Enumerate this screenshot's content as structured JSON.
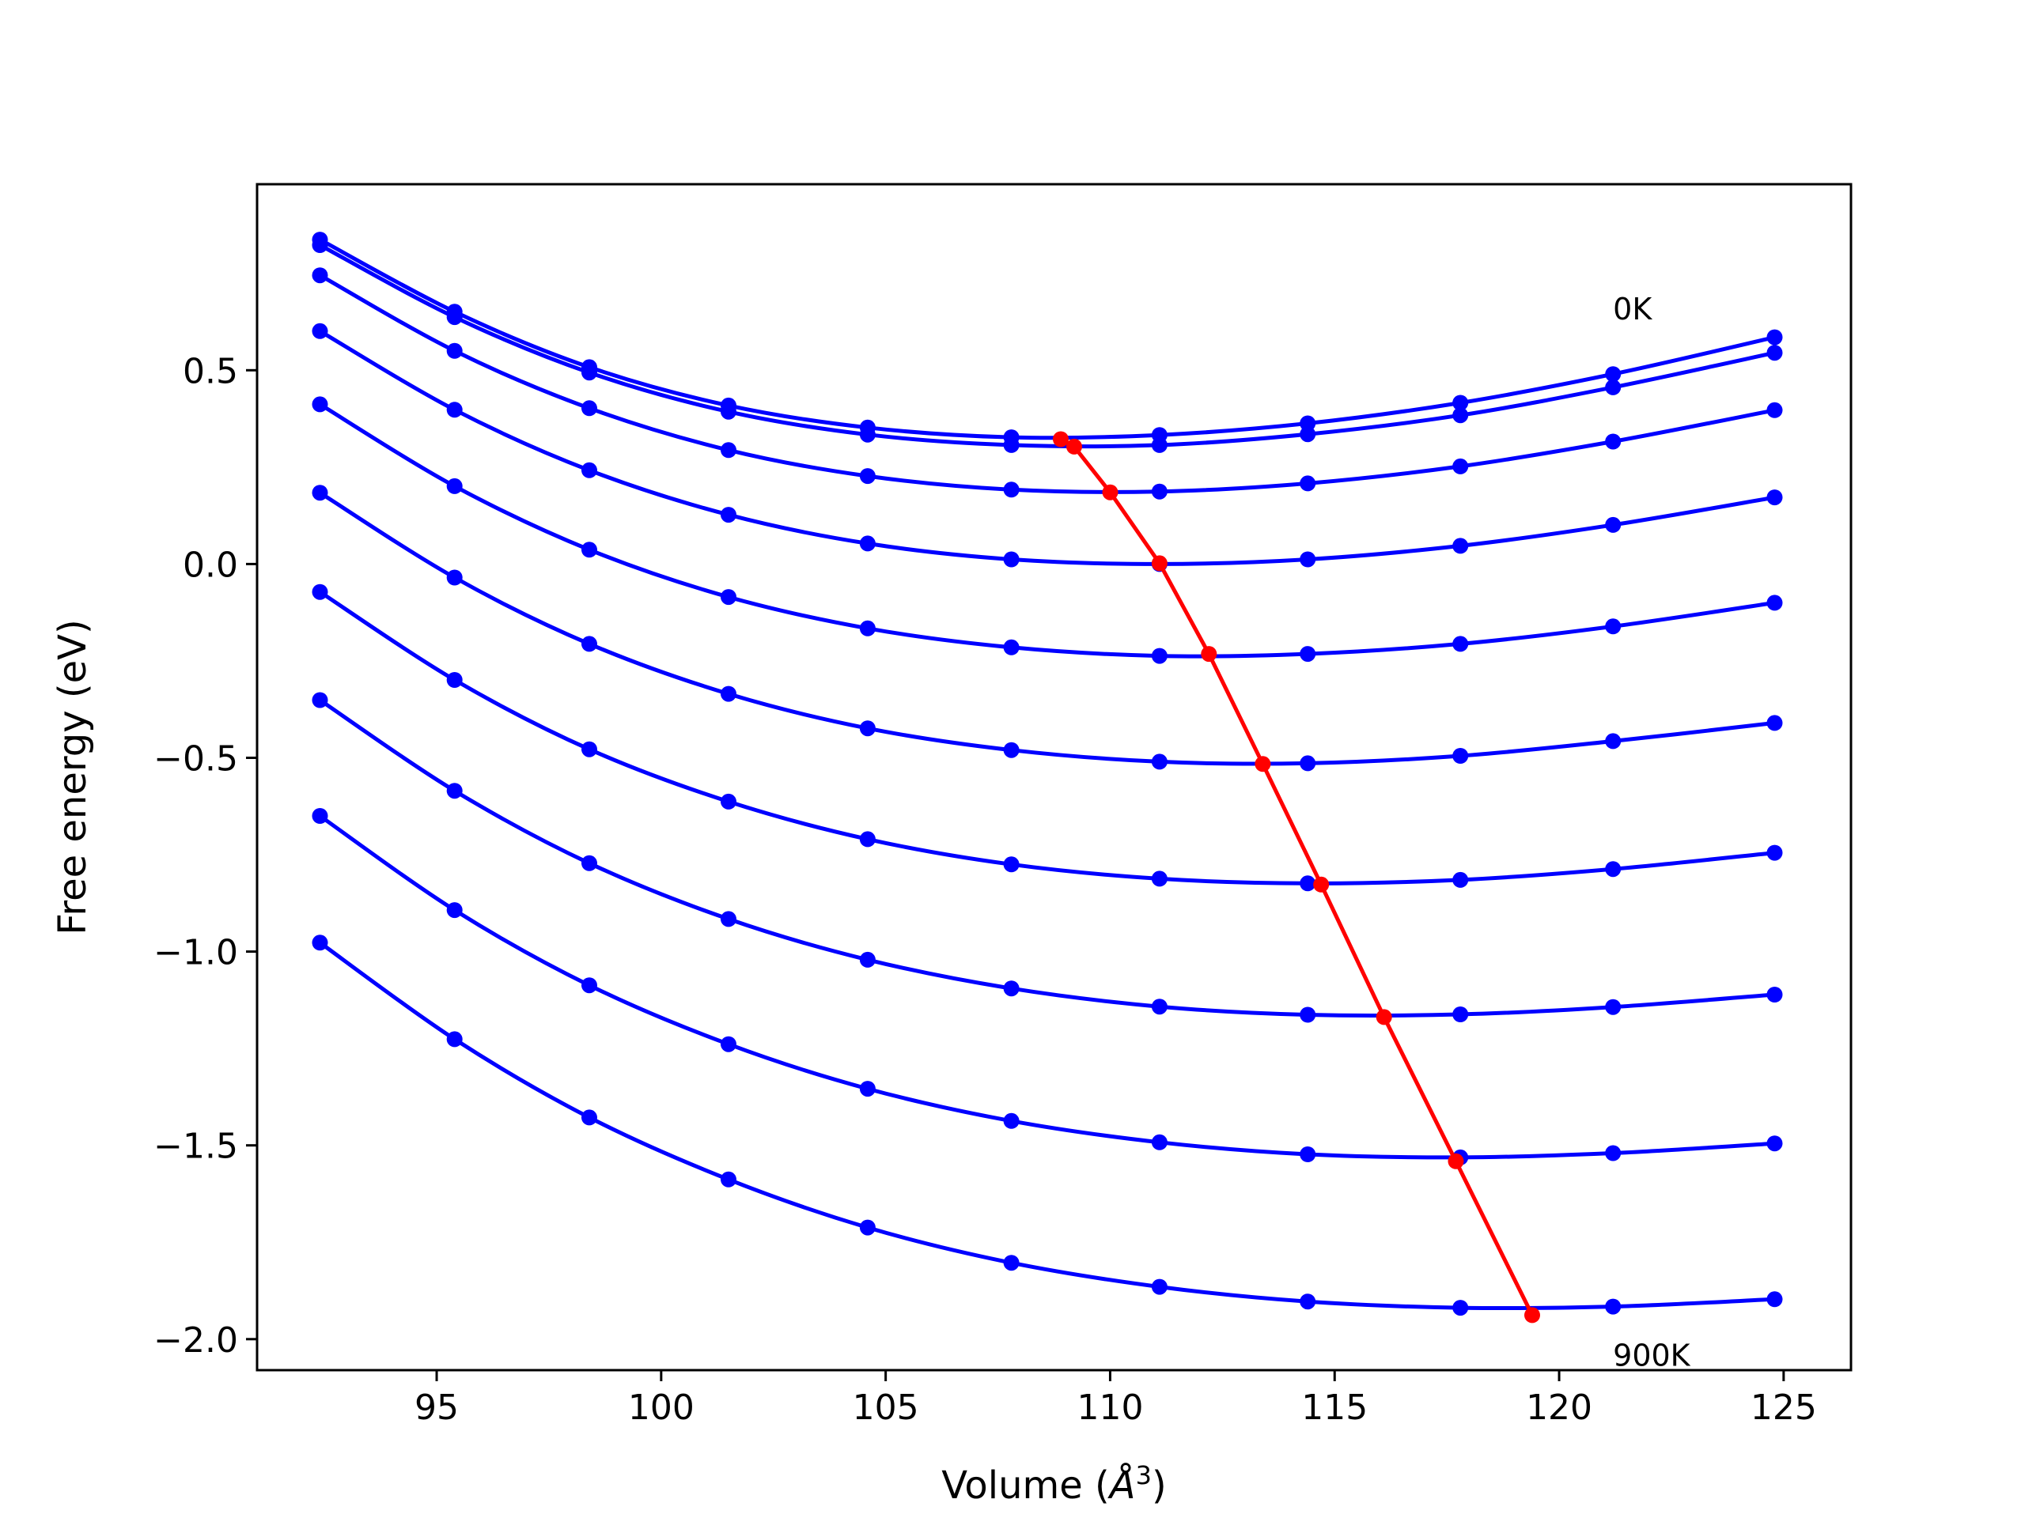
{
  "chart_data": {
    "type": "line",
    "xlabel_prefix": "Volume (",
    "xlabel_unit": "Å",
    "xlabel_exp": "3",
    "xlabel_suffix": ")",
    "ylabel": "Free energy (eV)",
    "xlim": [
      91,
      126.5
    ],
    "ylim": [
      -2.08,
      0.98
    ],
    "xticks": [
      {
        "value": 95,
        "label": "95"
      },
      {
        "value": 100,
        "label": "100"
      },
      {
        "value": 105,
        "label": "105"
      },
      {
        "value": 110,
        "label": "110"
      },
      {
        "value": 115,
        "label": "115"
      },
      {
        "value": 120,
        "label": "120"
      },
      {
        "value": 125,
        "label": "125"
      }
    ],
    "yticks": [
      {
        "value": 0.5,
        "label": "0.5"
      },
      {
        "value": 0.0,
        "label": "0.0"
      },
      {
        "value": -0.5,
        "label": "−0.5"
      },
      {
        "value": -1.0,
        "label": "−1.0"
      },
      {
        "value": -1.5,
        "label": "−1.5"
      },
      {
        "value": -2.0,
        "label": "−2.0"
      }
    ],
    "x": [
      92.4,
      95.4,
      98.4,
      101.5,
      104.6,
      107.8,
      111.1,
      114.4,
      117.8,
      121.2,
      124.8
    ],
    "series_color": "#0000ff",
    "min_color": "#ff0000",
    "series": [
      {
        "values": [
          0.837,
          0.651,
          0.508,
          0.409,
          0.352,
          0.327,
          0.333,
          0.363,
          0.416,
          0.49,
          0.585
        ]
      },
      {
        "values": [
          0.823,
          0.637,
          0.494,
          0.393,
          0.334,
          0.307,
          0.307,
          0.335,
          0.384,
          0.456,
          0.545
        ]
      },
      {
        "values": [
          0.745,
          0.55,
          0.402,
          0.294,
          0.227,
          0.192,
          0.187,
          0.208,
          0.252,
          0.316,
          0.397
        ]
      },
      {
        "values": [
          0.601,
          0.398,
          0.242,
          0.127,
          0.053,
          0.012,
          0.0,
          0.012,
          0.047,
          0.101,
          0.172
        ]
      },
      {
        "values": [
          0.412,
          0.201,
          0.037,
          -0.085,
          -0.166,
          -0.215,
          -0.237,
          -0.232,
          -0.206,
          -0.161,
          -0.1
        ]
      },
      {
        "values": [
          0.184,
          -0.035,
          -0.206,
          -0.335,
          -0.424,
          -0.48,
          -0.51,
          -0.514,
          -0.495,
          -0.457,
          -0.41
        ]
      },
      {
        "values": [
          -0.072,
          -0.299,
          -0.478,
          -0.613,
          -0.71,
          -0.775,
          -0.812,
          -0.824,
          -0.815,
          -0.787,
          -0.745
        ]
      },
      {
        "values": [
          -0.351,
          -0.585,
          -0.772,
          -0.916,
          -1.021,
          -1.095,
          -1.142,
          -1.163,
          -1.162,
          -1.143,
          -1.111
        ]
      },
      {
        "values": [
          -0.65,
          -0.893,
          -1.087,
          -1.239,
          -1.354,
          -1.437,
          -1.492,
          -1.523,
          -1.531,
          -1.52,
          -1.495
        ]
      },
      {
        "values": [
          -0.977,
          -1.226,
          -1.428,
          -1.588,
          -1.712,
          -1.803,
          -1.865,
          -1.903,
          -1.919,
          -1.916,
          -1.897
        ]
      }
    ],
    "min_curve": {
      "x": [
        108.9,
        109.2,
        110.0,
        111.1,
        112.2,
        113.4,
        114.7,
        116.1,
        117.7,
        119.4
      ],
      "y": [
        0.322,
        0.303,
        0.185,
        0.002,
        -0.232,
        -0.516,
        -0.827,
        -1.169,
        -1.541,
        -1.938
      ]
    },
    "annotations": [
      {
        "text": "0K",
        "x": 121.2,
        "y": 0.66
      },
      {
        "text": "900K",
        "x": 121.2,
        "y": -2.04
      }
    ]
  }
}
